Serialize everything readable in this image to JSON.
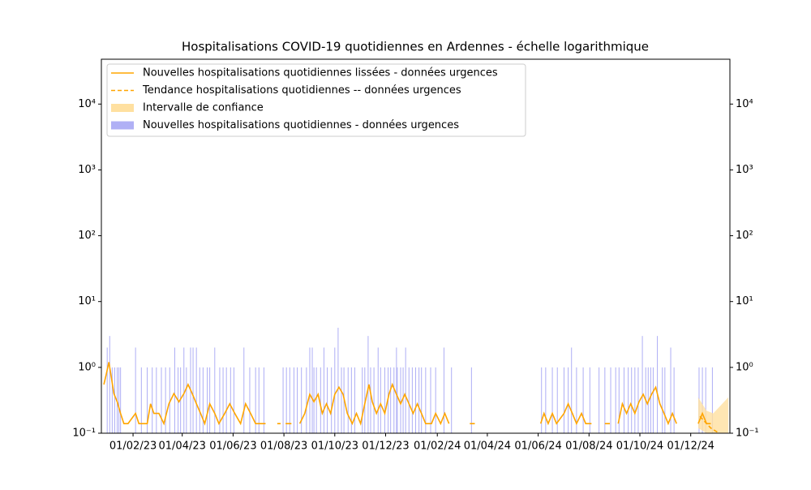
{
  "chart_data": {
    "type": "line",
    "title": "Hospitalisations COVID-19 quotidiennes en Ardennes - échelle logarithmique",
    "yscale": "log",
    "mirror_y": true,
    "legend": "upper left",
    "xlim": [
      "2022-12-25",
      "2025-01-17"
    ],
    "ylim": [
      0.1,
      48000
    ],
    "xticks": [
      {
        "value": "2023-02-01",
        "label": "01/02/23"
      },
      {
        "value": "2023-04-01",
        "label": "01/04/23"
      },
      {
        "value": "2023-06-01",
        "label": "01/06/23"
      },
      {
        "value": "2023-08-01",
        "label": "01/08/23"
      },
      {
        "value": "2023-10-01",
        "label": "01/10/23"
      },
      {
        "value": "2023-12-01",
        "label": "01/12/23"
      },
      {
        "value": "2024-02-01",
        "label": "01/02/24"
      },
      {
        "value": "2024-04-01",
        "label": "01/04/24"
      },
      {
        "value": "2024-06-01",
        "label": "01/06/24"
      },
      {
        "value": "2024-08-01",
        "label": "01/08/24"
      },
      {
        "value": "2024-10-01",
        "label": "01/10/24"
      },
      {
        "value": "2024-12-01",
        "label": "01/12/24"
      }
    ],
    "yticks": [
      {
        "value": 0.1,
        "label": "10⁻¹"
      },
      {
        "value": 1,
        "label": "10⁰"
      },
      {
        "value": 10,
        "label": "10¹"
      },
      {
        "value": 100,
        "label": "10²"
      },
      {
        "value": 1000,
        "label": "10³"
      },
      {
        "value": 10000,
        "label": "10⁴"
      }
    ],
    "series": [
      {
        "name": "Nouvelles hospitalisations quotidiennes lissées - données urgences",
        "type": "line",
        "color": "#ffa500",
        "x": [
          "2022-12-28",
          "2022-12-31",
          "2023-01-03",
          "2023-01-06",
          "2023-01-09",
          "2023-01-13",
          "2023-01-17",
          "2023-01-21",
          "2023-01-26",
          "2023-02-04",
          "2023-02-08",
          "2023-02-18",
          "2023-02-22",
          "2023-02-26",
          "2023-03-04",
          "2023-03-10",
          "2023-03-16",
          "2023-03-22",
          "2023-03-28",
          "2023-04-03",
          "2023-04-08",
          "2023-04-13",
          "2023-04-18",
          "2023-04-23",
          "2023-04-28",
          "2023-05-04",
          "2023-05-10",
          "2023-05-15",
          "2023-05-22",
          "2023-05-28",
          "2023-06-03",
          "2023-06-10",
          "2023-06-16",
          "2023-06-22",
          "2023-06-28",
          "2023-07-10",
          "2023-07-12",
          "2023-07-24",
          "2023-07-28",
          "2023-07-30",
          "2023-08-03",
          "2023-08-10",
          "2023-08-12",
          "2023-08-20",
          "2023-08-26",
          "2023-09-01",
          "2023-09-06",
          "2023-09-11",
          "2023-09-16",
          "2023-09-21",
          "2023-09-26",
          "2023-10-01",
          "2023-10-06",
          "2023-10-11",
          "2023-10-16",
          "2023-10-22",
          "2023-10-27",
          "2023-11-01",
          "2023-11-06",
          "2023-11-11",
          "2023-11-15",
          "2023-11-20",
          "2023-11-25",
          "2023-11-30",
          "2023-12-05",
          "2023-12-09",
          "2023-12-14",
          "2023-12-19",
          "2023-12-24",
          "2023-12-29",
          "2024-01-03",
          "2024-01-08",
          "2024-01-13",
          "2024-01-18",
          "2024-01-25",
          "2024-01-30",
          "2024-02-05",
          "2024-02-10",
          "2024-02-15",
          "2024-02-18",
          "2024-03-11",
          "2024-03-17",
          "2024-03-19",
          "2024-06-04",
          "2024-06-08",
          "2024-06-13",
          "2024-06-18",
          "2024-06-23",
          "2024-07-02",
          "2024-07-07",
          "2024-07-12",
          "2024-07-17",
          "2024-07-23",
          "2024-07-28",
          "2024-08-04",
          "2024-08-06",
          "2024-08-20",
          "2024-08-26",
          "2024-08-30",
          "2024-09-05",
          "2024-09-10",
          "2024-09-15",
          "2024-09-20",
          "2024-09-25",
          "2024-09-30",
          "2024-10-05",
          "2024-10-10",
          "2024-10-15",
          "2024-10-20",
          "2024-10-25",
          "2024-10-30",
          "2024-11-04",
          "2024-11-09",
          "2024-11-14",
          "2024-11-16",
          "2024-12-10",
          "2024-12-15",
          "2024-12-20",
          "2024-12-25"
        ],
        "values": [
          0.55,
          0.8,
          1.2,
          0.7,
          0.4,
          0.3,
          0.2,
          0.14,
          0.14,
          0.2,
          0.14,
          0.14,
          0.28,
          0.2,
          0.2,
          0.14,
          0.28,
          0.4,
          0.3,
          0.4,
          0.55,
          0.4,
          0.28,
          0.2,
          0.14,
          0.28,
          0.2,
          0.14,
          0.2,
          0.28,
          0.2,
          0.14,
          0.28,
          0.2,
          0.14,
          0.14,
          null,
          0.14,
          0.14,
          null,
          0.14,
          0.14,
          null,
          0.14,
          0.2,
          0.39,
          0.3,
          0.39,
          0.2,
          0.28,
          0.2,
          0.39,
          0.5,
          0.39,
          0.2,
          0.14,
          0.2,
          0.14,
          0.28,
          0.55,
          0.3,
          0.2,
          0.28,
          0.2,
          0.39,
          0.55,
          0.39,
          0.28,
          0.39,
          0.28,
          0.2,
          0.28,
          0.2,
          0.14,
          0.14,
          0.2,
          0.14,
          0.2,
          0.14,
          null,
          0.14,
          0.14,
          null,
          0.14,
          0.2,
          0.14,
          0.2,
          0.14,
          0.2,
          0.28,
          0.2,
          0.14,
          0.2,
          0.14,
          0.14,
          null,
          0.14,
          0.14,
          null,
          0.14,
          0.28,
          0.2,
          0.28,
          0.2,
          0.3,
          0.39,
          0.28,
          0.39,
          0.5,
          0.28,
          0.2,
          0.14,
          0.2,
          0.14,
          null,
          0.14,
          0.2,
          0.14,
          0.14
        ]
      },
      {
        "name": "Tendance hospitalisations quotidiennes -- données urgences",
        "type": "dashed",
        "color": "#ffa500",
        "x": [
          "2024-12-12",
          "2024-12-25",
          "2025-01-10"
        ],
        "values": [
          0.18,
          0.12,
          0.09
        ]
      },
      {
        "name": "Intervalle de confiance",
        "type": "band",
        "color": "#ffe0a0",
        "x": [
          "2024-12-10",
          "2024-12-20",
          "2024-12-28",
          "2025-01-15"
        ],
        "lower": [
          0.12,
          0.1,
          0.09,
          0.07
        ],
        "upper": [
          0.35,
          0.22,
          0.2,
          0.35
        ]
      },
      {
        "name": "Nouvelles hospitalisations quotidiennes - données urgences",
        "type": "bar",
        "color": "#b0b0f5",
        "x": [
          "2023-01-01",
          "2023-01-04",
          "2023-01-07",
          "2023-01-10",
          "2023-01-13",
          "2023-01-15",
          "2023-01-17",
          "2023-02-04",
          "2023-02-11",
          "2023-02-18",
          "2023-02-24",
          "2023-03-01",
          "2023-03-07",
          "2023-03-12",
          "2023-03-17",
          "2023-03-23",
          "2023-03-27",
          "2023-03-30",
          "2023-04-03",
          "2023-04-06",
          "2023-04-11",
          "2023-04-14",
          "2023-04-18",
          "2023-04-22",
          "2023-04-26",
          "2023-05-01",
          "2023-05-04",
          "2023-05-10",
          "2023-05-16",
          "2023-05-20",
          "2023-05-24",
          "2023-05-29",
          "2023-06-02",
          "2023-06-14",
          "2023-06-21",
          "2023-06-28",
          "2023-07-02",
          "2023-07-08",
          "2023-07-31",
          "2023-08-04",
          "2023-08-08",
          "2023-08-13",
          "2023-08-17",
          "2023-08-22",
          "2023-08-28",
          "2023-09-01",
          "2023-09-04",
          "2023-09-06",
          "2023-09-09",
          "2023-09-14",
          "2023-09-18",
          "2023-09-22",
          "2023-09-27",
          "2023-10-01",
          "2023-10-05",
          "2023-10-09",
          "2023-10-12",
          "2023-10-17",
          "2023-10-21",
          "2023-10-25",
          "2023-11-03",
          "2023-11-06",
          "2023-11-10",
          "2023-11-13",
          "2023-11-17",
          "2023-11-22",
          "2023-11-25",
          "2023-11-30",
          "2023-12-04",
          "2023-12-07",
          "2023-12-11",
          "2023-12-14",
          "2023-12-15",
          "2023-12-19",
          "2023-12-22",
          "2023-12-25",
          "2023-12-29",
          "2024-01-02",
          "2024-01-06",
          "2024-01-10",
          "2024-01-13",
          "2024-01-18",
          "2024-01-24",
          "2024-01-30",
          "2024-02-09",
          "2024-02-18",
          "2024-03-13",
          "2024-06-05",
          "2024-06-10",
          "2024-06-18",
          "2024-06-24",
          "2024-07-02",
          "2024-07-07",
          "2024-07-11",
          "2024-07-17",
          "2024-07-25",
          "2024-08-02",
          "2024-08-13",
          "2024-08-20",
          "2024-08-27",
          "2024-09-02",
          "2024-09-06",
          "2024-09-12",
          "2024-09-17",
          "2024-09-21",
          "2024-09-25",
          "2024-09-29",
          "2024-10-04",
          "2024-10-08",
          "2024-10-11",
          "2024-10-14",
          "2024-10-17",
          "2024-10-22",
          "2024-10-28",
          "2024-10-31",
          "2024-11-07",
          "2024-11-11",
          "2024-12-11",
          "2024-12-15",
          "2024-12-19",
          "2024-12-27"
        ],
        "values": [
          2,
          3,
          1,
          1,
          1,
          1,
          1,
          2,
          1,
          1,
          1,
          1,
          1,
          1,
          1,
          2,
          1,
          1,
          2,
          1,
          2,
          2,
          2,
          1,
          1,
          1,
          1,
          2,
          1,
          1,
          1,
          1,
          1,
          2,
          1,
          1,
          1,
          1,
          1,
          1,
          1,
          1,
          1,
          1,
          1,
          2,
          2,
          1,
          1,
          1,
          2,
          1,
          1,
          2,
          4,
          1,
          1,
          1,
          1,
          1,
          1,
          1,
          3,
          1,
          1,
          2,
          1,
          1,
          1,
          1,
          1,
          2,
          1,
          1,
          1,
          2,
          1,
          1,
          1,
          1,
          1,
          1,
          1,
          1,
          2,
          1,
          1,
          1,
          1,
          1,
          1,
          1,
          1,
          2,
          1,
          1,
          1,
          1,
          1,
          1,
          1,
          1,
          1,
          1,
          1,
          1,
          1,
          3,
          1,
          1,
          1,
          1,
          3,
          1,
          1,
          2,
          1,
          1,
          1,
          1,
          1
        ]
      }
    ]
  }
}
